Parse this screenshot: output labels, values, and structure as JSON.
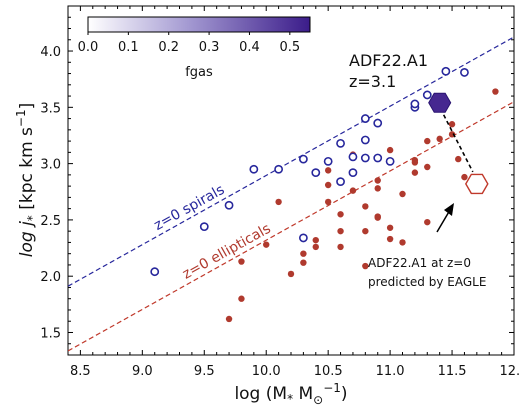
{
  "chart_data": {
    "type": "scatter",
    "xlabel": "log (M",
    "xlabel_sub": "*",
    "xlabel_mid": " M",
    "xlabel_sub2": "⊙",
    "xlabel_sup2": "−1",
    "xlabel_end": ")",
    "ylabel": "log j",
    "ylabel_sub": "*",
    "ylabel_unit": " [kpc km s",
    "ylabel_sup": "−1",
    "ylabel_end": "]",
    "xlim": [
      8.4,
      12.0
    ],
    "ylim": [
      1.3,
      4.4
    ],
    "xticks": [
      "8.5",
      "9.0",
      "9.5",
      "10.0",
      "10.5",
      "11.0",
      "11.5",
      "12.0"
    ],
    "xtick_values": [
      8.5,
      9.0,
      9.5,
      10.0,
      10.5,
      11.0,
      11.5,
      12.0
    ],
    "yticks": [
      "1.5",
      "2.0",
      "2.5",
      "3.0",
      "3.5",
      "4.0"
    ],
    "ytick_values": [
      1.5,
      2.0,
      2.5,
      3.0,
      3.5,
      4.0
    ],
    "colorbar": {
      "label": "fgas",
      "ticks": [
        "0.0",
        "0.1",
        "0.2",
        "0.3",
        "0.4",
        "0.5"
      ],
      "tick_values": [
        0.0,
        0.1,
        0.2,
        0.3,
        0.4,
        0.5
      ],
      "range": [
        0.0,
        0.55
      ],
      "color_low": "#ffffff",
      "color_high": "#3b1c8a"
    },
    "lines": [
      {
        "label": "z=0 spirals",
        "slope": 0.615,
        "intercept": -3.255,
        "color": "#27279c",
        "dash": true
      },
      {
        "label": "z=0 ellipticals",
        "slope": 0.615,
        "intercept": -3.83,
        "color": "#c0392b",
        "dash": true
      }
    ],
    "spirals": {
      "color": "#27279c",
      "points": [
        [
          9.1,
          2.04
        ],
        [
          9.5,
          2.44
        ],
        [
          9.7,
          2.63
        ],
        [
          9.9,
          2.95
        ],
        [
          10.1,
          2.95
        ],
        [
          10.3,
          3.04
        ],
        [
          10.3,
          2.34
        ],
        [
          10.4,
          2.92
        ],
        [
          10.5,
          3.02
        ],
        [
          10.6,
          3.18
        ],
        [
          10.6,
          2.84
        ],
        [
          10.7,
          3.06
        ],
        [
          10.7,
          2.92
        ],
        [
          10.8,
          3.05
        ],
        [
          10.8,
          3.21
        ],
        [
          10.8,
          3.4
        ],
        [
          10.9,
          3.36
        ],
        [
          10.9,
          3.05
        ],
        [
          11.0,
          3.02
        ],
        [
          11.2,
          3.5
        ],
        [
          11.2,
          3.53
        ],
        [
          11.3,
          3.61
        ],
        [
          11.45,
          3.82
        ],
        [
          11.6,
          3.81
        ]
      ]
    },
    "ellipticals": {
      "color": "#b03a2e",
      "points": [
        [
          9.7,
          1.62
        ],
        [
          9.8,
          1.8
        ],
        [
          9.8,
          2.13
        ],
        [
          10.0,
          2.28
        ],
        [
          10.1,
          2.66
        ],
        [
          10.2,
          2.02
        ],
        [
          10.3,
          2.12
        ],
        [
          10.3,
          2.2
        ],
        [
          10.4,
          2.32
        ],
        [
          10.4,
          2.26
        ],
        [
          10.5,
          2.66
        ],
        [
          10.5,
          2.81
        ],
        [
          10.5,
          2.94
        ],
        [
          10.6,
          2.26
        ],
        [
          10.6,
          2.4
        ],
        [
          10.6,
          2.55
        ],
        [
          10.7,
          3.08
        ],
        [
          10.7,
          2.76
        ],
        [
          10.8,
          2.62
        ],
        [
          10.8,
          2.4
        ],
        [
          10.8,
          2.09
        ],
        [
          10.9,
          2.53
        ],
        [
          10.9,
          2.78
        ],
        [
          10.9,
          2.52
        ],
        [
          10.9,
          2.85
        ],
        [
          11.0,
          3.12
        ],
        [
          11.0,
          2.43
        ],
        [
          11.0,
          2.33
        ],
        [
          11.1,
          2.73
        ],
        [
          11.1,
          2.3
        ],
        [
          11.2,
          2.92
        ],
        [
          11.2,
          3.01
        ],
        [
          11.2,
          3.03
        ],
        [
          11.3,
          2.97
        ],
        [
          11.3,
          2.48
        ],
        [
          11.3,
          3.2
        ],
        [
          11.4,
          3.22
        ],
        [
          11.5,
          3.35
        ],
        [
          11.5,
          3.26
        ],
        [
          11.55,
          3.04
        ],
        [
          11.6,
          2.88
        ],
        [
          11.85,
          3.64
        ]
      ]
    },
    "adf22": {
      "x": 11.4,
      "y": 3.54,
      "fgas": 0.52,
      "label": "ADF22.A1",
      "label2": "z=3.1"
    },
    "eagle": {
      "x": 11.7,
      "y": 2.82,
      "color": "#c0392b",
      "label": "ADF22.A1 at z=0",
      "label2": "predicted by EAGLE"
    }
  }
}
